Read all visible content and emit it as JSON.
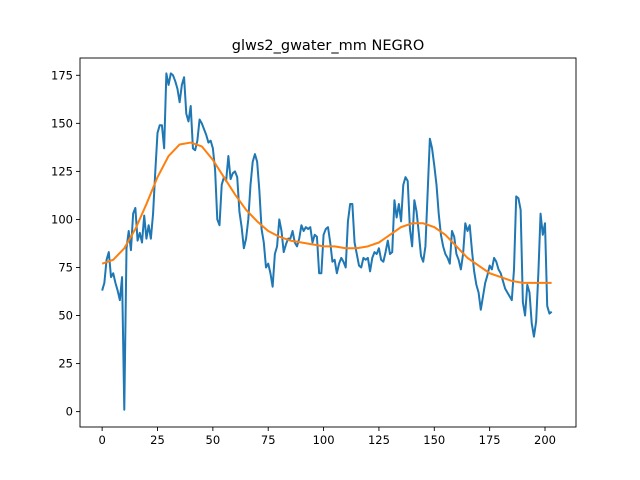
{
  "chart_data": {
    "type": "line",
    "title": "glws2_gwater_mm NEGRO",
    "xlabel": "",
    "ylabel": "",
    "xlim": [
      -10,
      214
    ],
    "ylim": [
      -8,
      184
    ],
    "xticks": [
      0,
      25,
      50,
      75,
      100,
      125,
      150,
      175,
      200
    ],
    "yticks": [
      0,
      25,
      50,
      75,
      100,
      125,
      150,
      175
    ],
    "grid": false,
    "legend": "none",
    "series": [
      {
        "color": "#1f77b4",
        "x": [
          0,
          1,
          2,
          3,
          4,
          5,
          6,
          7,
          8,
          9,
          10,
          11,
          12,
          13,
          14,
          15,
          16,
          17,
          18,
          19,
          20,
          21,
          22,
          23,
          24,
          25,
          26,
          27,
          28,
          29,
          30,
          31,
          32,
          33,
          34,
          35,
          36,
          37,
          38,
          39,
          40,
          41,
          42,
          43,
          44,
          45,
          46,
          47,
          48,
          49,
          50,
          51,
          52,
          53,
          54,
          55,
          56,
          57,
          58,
          59,
          60,
          61,
          62,
          63,
          64,
          65,
          66,
          67,
          68,
          69,
          70,
          71,
          72,
          73,
          74,
          75,
          76,
          77,
          78,
          79,
          80,
          81,
          82,
          83,
          84,
          85,
          86,
          87,
          88,
          89,
          90,
          91,
          92,
          93,
          94,
          95,
          96,
          97,
          98,
          99,
          100,
          101,
          102,
          103,
          104,
          105,
          106,
          107,
          108,
          109,
          110,
          111,
          112,
          113,
          114,
          115,
          116,
          117,
          118,
          119,
          120,
          121,
          122,
          123,
          124,
          125,
          126,
          127,
          128,
          129,
          130,
          131,
          132,
          133,
          134,
          135,
          136,
          137,
          138,
          139,
          140,
          141,
          142,
          143,
          144,
          145,
          146,
          147,
          148,
          149,
          150,
          151,
          152,
          153,
          154,
          155,
          156,
          157,
          158,
          159,
          160,
          161,
          162,
          163,
          164,
          165,
          166,
          167,
          168,
          169,
          170,
          171,
          172,
          173,
          174,
          175,
          176,
          177,
          178,
          179,
          180,
          181,
          182,
          183,
          184,
          185,
          186,
          187,
          188,
          189,
          190,
          191,
          192,
          193,
          194,
          195,
          196,
          197,
          198,
          199,
          200,
          201,
          202,
          203
        ],
        "y": [
          63,
          67,
          79,
          83,
          70,
          72,
          67,
          63,
          58,
          70,
          1,
          85,
          94,
          84,
          103,
          106,
          89,
          93,
          88,
          102,
          90,
          97,
          90,
          103,
          125,
          145,
          149,
          149,
          137,
          176,
          170,
          176,
          175,
          172,
          168,
          161,
          170,
          174,
          155,
          151,
          159,
          137,
          136,
          141,
          152,
          150,
          147,
          144,
          140,
          141,
          137,
          126,
          100,
          97,
          118,
          122,
          120,
          133,
          121,
          124,
          125,
          122,
          104,
          96,
          85,
          90,
          100,
          118,
          130,
          134,
          130,
          115,
          95,
          88,
          75,
          77,
          72,
          65,
          82,
          86,
          100,
          94,
          83,
          87,
          90,
          90,
          94,
          88,
          86,
          90,
          97,
          94,
          96,
          95,
          96,
          88,
          92,
          91,
          72,
          72,
          92,
          95,
          96,
          88,
          78,
          79,
          72,
          77,
          80,
          78,
          75,
          99,
          108,
          108,
          88,
          82,
          76,
          75,
          80,
          79,
          80,
          73,
          80,
          83,
          82,
          85,
          79,
          78,
          83,
          89,
          82,
          83,
          110,
          101,
          108,
          99,
          118,
          122,
          120,
          95,
          86,
          110,
          104,
          93,
          81,
          78,
          86,
          114,
          142,
          137,
          128,
          118,
          103,
          92,
          86,
          82,
          80,
          77,
          94,
          91,
          82,
          79,
          74,
          82,
          98,
          94,
          97,
          84,
          73,
          66,
          62,
          53,
          60,
          67,
          71,
          76,
          74,
          80,
          78,
          74,
          72,
          68,
          64,
          62,
          60,
          58,
          74,
          112,
          111,
          105,
          57,
          50,
          66,
          62,
          46,
          39,
          47,
          72,
          103,
          92,
          98,
          55,
          51,
          52
        ]
      },
      {
        "color": "#ff7f0e",
        "x": [
          0,
          5,
          10,
          15,
          20,
          25,
          30,
          35,
          40,
          45,
          50,
          55,
          60,
          65,
          70,
          75,
          80,
          85,
          90,
          95,
          100,
          105,
          110,
          115,
          120,
          125,
          130,
          135,
          140,
          145,
          150,
          155,
          160,
          165,
          170,
          175,
          180,
          185,
          190,
          195,
          200,
          203
        ],
        "y": [
          77,
          79,
          85,
          95,
          108,
          122,
          133,
          139,
          140,
          138,
          131,
          122,
          113,
          105,
          99,
          94,
          91,
          89,
          88,
          87,
          86,
          86,
          85,
          85,
          86,
          88,
          92,
          96,
          98,
          98,
          96,
          92,
          86,
          80,
          76,
          72,
          70,
          68,
          67,
          67,
          67,
          67
        ]
      }
    ]
  }
}
